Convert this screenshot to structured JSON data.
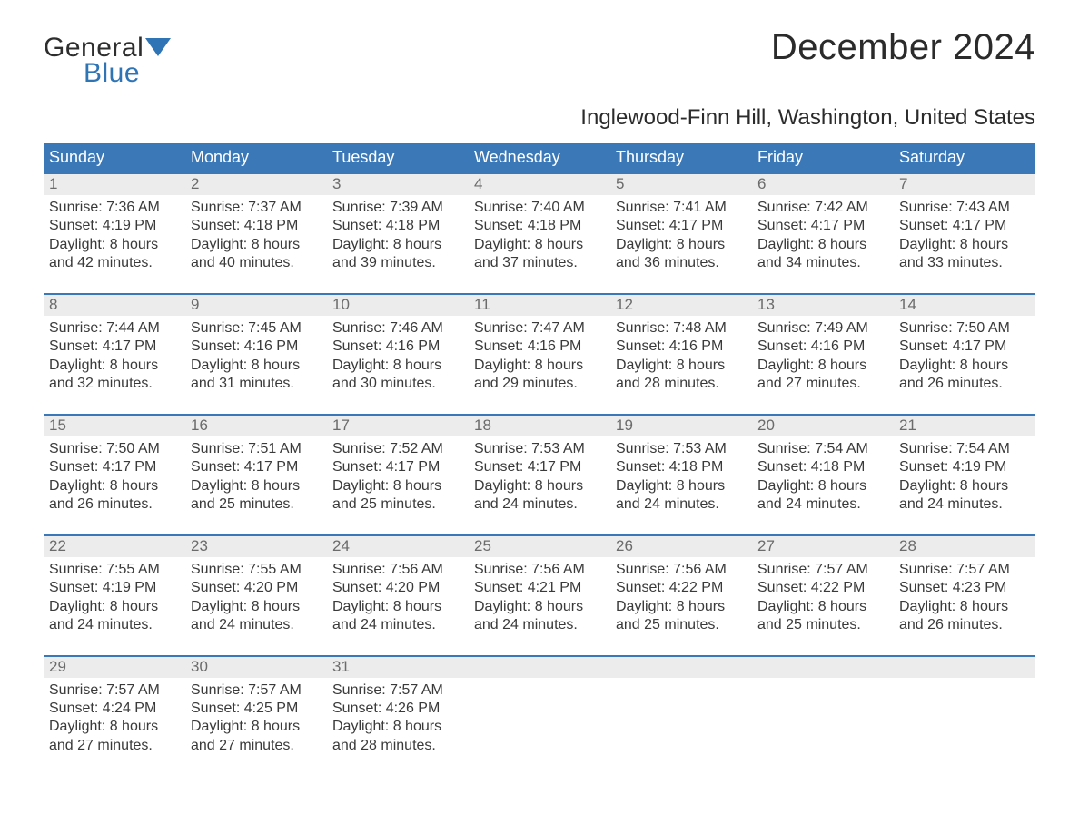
{
  "logo": {
    "word1": "General",
    "word2": "Blue",
    "color_text": "#2e2e2e",
    "color_accent": "#2f74b5"
  },
  "title": "December 2024",
  "location": "Inglewood-Finn Hill, Washington, United States",
  "colors": {
    "header_bg": "#3b78b8",
    "header_text": "#ffffff",
    "daynum_bg": "#ececec",
    "daynum_text": "#6b6b6b",
    "body_text": "#3a3a3a",
    "rule": "#3b78b8",
    "page_bg": "#ffffff"
  },
  "typography": {
    "title_fontsize": 40,
    "location_fontsize": 24,
    "dayhead_fontsize": 18,
    "cell_fontsize": 16
  },
  "layout": {
    "columns": 7,
    "col_labels": [
      "Sunday",
      "Monday",
      "Tuesday",
      "Wednesday",
      "Thursday",
      "Friday",
      "Saturday"
    ]
  },
  "weeks": [
    [
      {
        "n": "1",
        "sunrise": "Sunrise: 7:36 AM",
        "sunset": "Sunset: 4:19 PM",
        "d1": "Daylight: 8 hours",
        "d2": "and 42 minutes."
      },
      {
        "n": "2",
        "sunrise": "Sunrise: 7:37 AM",
        "sunset": "Sunset: 4:18 PM",
        "d1": "Daylight: 8 hours",
        "d2": "and 40 minutes."
      },
      {
        "n": "3",
        "sunrise": "Sunrise: 7:39 AM",
        "sunset": "Sunset: 4:18 PM",
        "d1": "Daylight: 8 hours",
        "d2": "and 39 minutes."
      },
      {
        "n": "4",
        "sunrise": "Sunrise: 7:40 AM",
        "sunset": "Sunset: 4:18 PM",
        "d1": "Daylight: 8 hours",
        "d2": "and 37 minutes."
      },
      {
        "n": "5",
        "sunrise": "Sunrise: 7:41 AM",
        "sunset": "Sunset: 4:17 PM",
        "d1": "Daylight: 8 hours",
        "d2": "and 36 minutes."
      },
      {
        "n": "6",
        "sunrise": "Sunrise: 7:42 AM",
        "sunset": "Sunset: 4:17 PM",
        "d1": "Daylight: 8 hours",
        "d2": "and 34 minutes."
      },
      {
        "n": "7",
        "sunrise": "Sunrise: 7:43 AM",
        "sunset": "Sunset: 4:17 PM",
        "d1": "Daylight: 8 hours",
        "d2": "and 33 minutes."
      }
    ],
    [
      {
        "n": "8",
        "sunrise": "Sunrise: 7:44 AM",
        "sunset": "Sunset: 4:17 PM",
        "d1": "Daylight: 8 hours",
        "d2": "and 32 minutes."
      },
      {
        "n": "9",
        "sunrise": "Sunrise: 7:45 AM",
        "sunset": "Sunset: 4:16 PM",
        "d1": "Daylight: 8 hours",
        "d2": "and 31 minutes."
      },
      {
        "n": "10",
        "sunrise": "Sunrise: 7:46 AM",
        "sunset": "Sunset: 4:16 PM",
        "d1": "Daylight: 8 hours",
        "d2": "and 30 minutes."
      },
      {
        "n": "11",
        "sunrise": "Sunrise: 7:47 AM",
        "sunset": "Sunset: 4:16 PM",
        "d1": "Daylight: 8 hours",
        "d2": "and 29 minutes."
      },
      {
        "n": "12",
        "sunrise": "Sunrise: 7:48 AM",
        "sunset": "Sunset: 4:16 PM",
        "d1": "Daylight: 8 hours",
        "d2": "and 28 minutes."
      },
      {
        "n": "13",
        "sunrise": "Sunrise: 7:49 AM",
        "sunset": "Sunset: 4:16 PM",
        "d1": "Daylight: 8 hours",
        "d2": "and 27 minutes."
      },
      {
        "n": "14",
        "sunrise": "Sunrise: 7:50 AM",
        "sunset": "Sunset: 4:17 PM",
        "d1": "Daylight: 8 hours",
        "d2": "and 26 minutes."
      }
    ],
    [
      {
        "n": "15",
        "sunrise": "Sunrise: 7:50 AM",
        "sunset": "Sunset: 4:17 PM",
        "d1": "Daylight: 8 hours",
        "d2": "and 26 minutes."
      },
      {
        "n": "16",
        "sunrise": "Sunrise: 7:51 AM",
        "sunset": "Sunset: 4:17 PM",
        "d1": "Daylight: 8 hours",
        "d2": "and 25 minutes."
      },
      {
        "n": "17",
        "sunrise": "Sunrise: 7:52 AM",
        "sunset": "Sunset: 4:17 PM",
        "d1": "Daylight: 8 hours",
        "d2": "and 25 minutes."
      },
      {
        "n": "18",
        "sunrise": "Sunrise: 7:53 AM",
        "sunset": "Sunset: 4:17 PM",
        "d1": "Daylight: 8 hours",
        "d2": "and 24 minutes."
      },
      {
        "n": "19",
        "sunrise": "Sunrise: 7:53 AM",
        "sunset": "Sunset: 4:18 PM",
        "d1": "Daylight: 8 hours",
        "d2": "and 24 minutes."
      },
      {
        "n": "20",
        "sunrise": "Sunrise: 7:54 AM",
        "sunset": "Sunset: 4:18 PM",
        "d1": "Daylight: 8 hours",
        "d2": "and 24 minutes."
      },
      {
        "n": "21",
        "sunrise": "Sunrise: 7:54 AM",
        "sunset": "Sunset: 4:19 PM",
        "d1": "Daylight: 8 hours",
        "d2": "and 24 minutes."
      }
    ],
    [
      {
        "n": "22",
        "sunrise": "Sunrise: 7:55 AM",
        "sunset": "Sunset: 4:19 PM",
        "d1": "Daylight: 8 hours",
        "d2": "and 24 minutes."
      },
      {
        "n": "23",
        "sunrise": "Sunrise: 7:55 AM",
        "sunset": "Sunset: 4:20 PM",
        "d1": "Daylight: 8 hours",
        "d2": "and 24 minutes."
      },
      {
        "n": "24",
        "sunrise": "Sunrise: 7:56 AM",
        "sunset": "Sunset: 4:20 PM",
        "d1": "Daylight: 8 hours",
        "d2": "and 24 minutes."
      },
      {
        "n": "25",
        "sunrise": "Sunrise: 7:56 AM",
        "sunset": "Sunset: 4:21 PM",
        "d1": "Daylight: 8 hours",
        "d2": "and 24 minutes."
      },
      {
        "n": "26",
        "sunrise": "Sunrise: 7:56 AM",
        "sunset": "Sunset: 4:22 PM",
        "d1": "Daylight: 8 hours",
        "d2": "and 25 minutes."
      },
      {
        "n": "27",
        "sunrise": "Sunrise: 7:57 AM",
        "sunset": "Sunset: 4:22 PM",
        "d1": "Daylight: 8 hours",
        "d2": "and 25 minutes."
      },
      {
        "n": "28",
        "sunrise": "Sunrise: 7:57 AM",
        "sunset": "Sunset: 4:23 PM",
        "d1": "Daylight: 8 hours",
        "d2": "and 26 minutes."
      }
    ],
    [
      {
        "n": "29",
        "sunrise": "Sunrise: 7:57 AM",
        "sunset": "Sunset: 4:24 PM",
        "d1": "Daylight: 8 hours",
        "d2": "and 27 minutes."
      },
      {
        "n": "30",
        "sunrise": "Sunrise: 7:57 AM",
        "sunset": "Sunset: 4:25 PM",
        "d1": "Daylight: 8 hours",
        "d2": "and 27 minutes."
      },
      {
        "n": "31",
        "sunrise": "Sunrise: 7:57 AM",
        "sunset": "Sunset: 4:26 PM",
        "d1": "Daylight: 8 hours",
        "d2": "and 28 minutes."
      },
      {
        "empty": true
      },
      {
        "empty": true
      },
      {
        "empty": true
      },
      {
        "empty": true
      }
    ]
  ]
}
